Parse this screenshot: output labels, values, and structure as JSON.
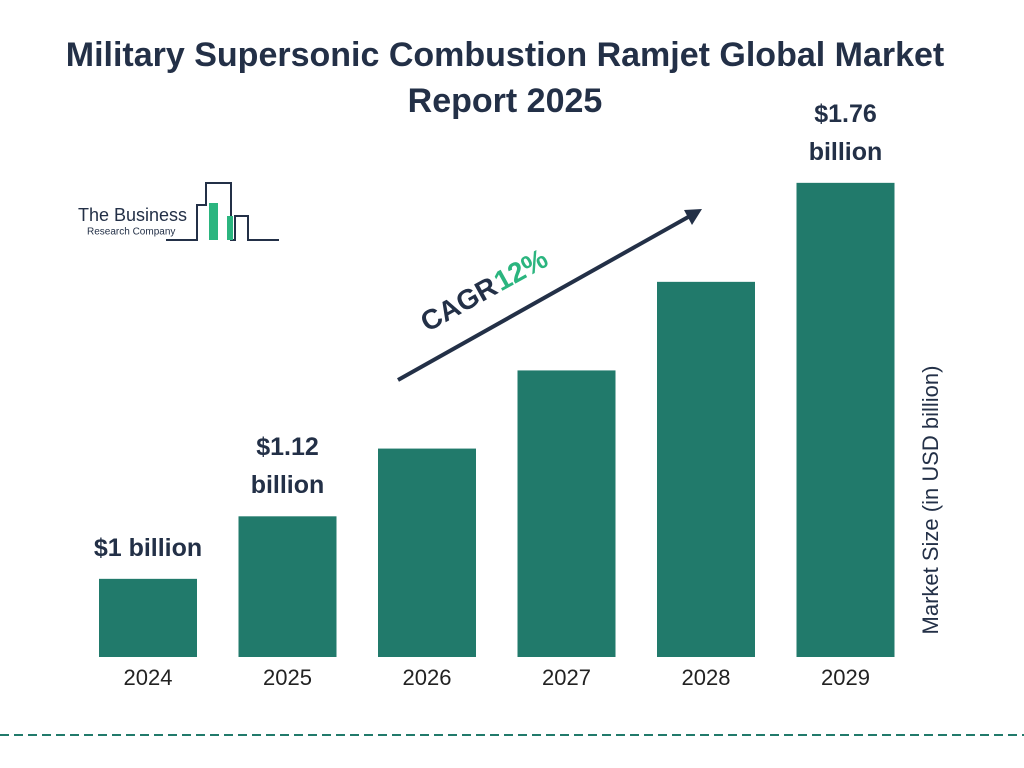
{
  "chart_data": {
    "type": "bar",
    "title": "Military Supersonic Combustion Ramjet Global Market Report 2025",
    "y_label": "Market Size (in USD billion)",
    "categories": [
      "2024",
      "2025",
      "2026",
      "2027",
      "2028",
      "2029"
    ],
    "values": [
      1,
      1.12,
      1.25,
      1.4,
      1.57,
      1.76
    ],
    "value_labels": [
      "$1 billion",
      "$1.12 billion",
      null,
      null,
      null,
      "$1.76 billion"
    ],
    "color": "#217a6b",
    "ylim": [
      0.85,
      1.8
    ],
    "annotation": {
      "label": "CAGR",
      "value_label": "12%"
    },
    "logo": {
      "line1": "The Business",
      "line2": "Research Company"
    }
  }
}
